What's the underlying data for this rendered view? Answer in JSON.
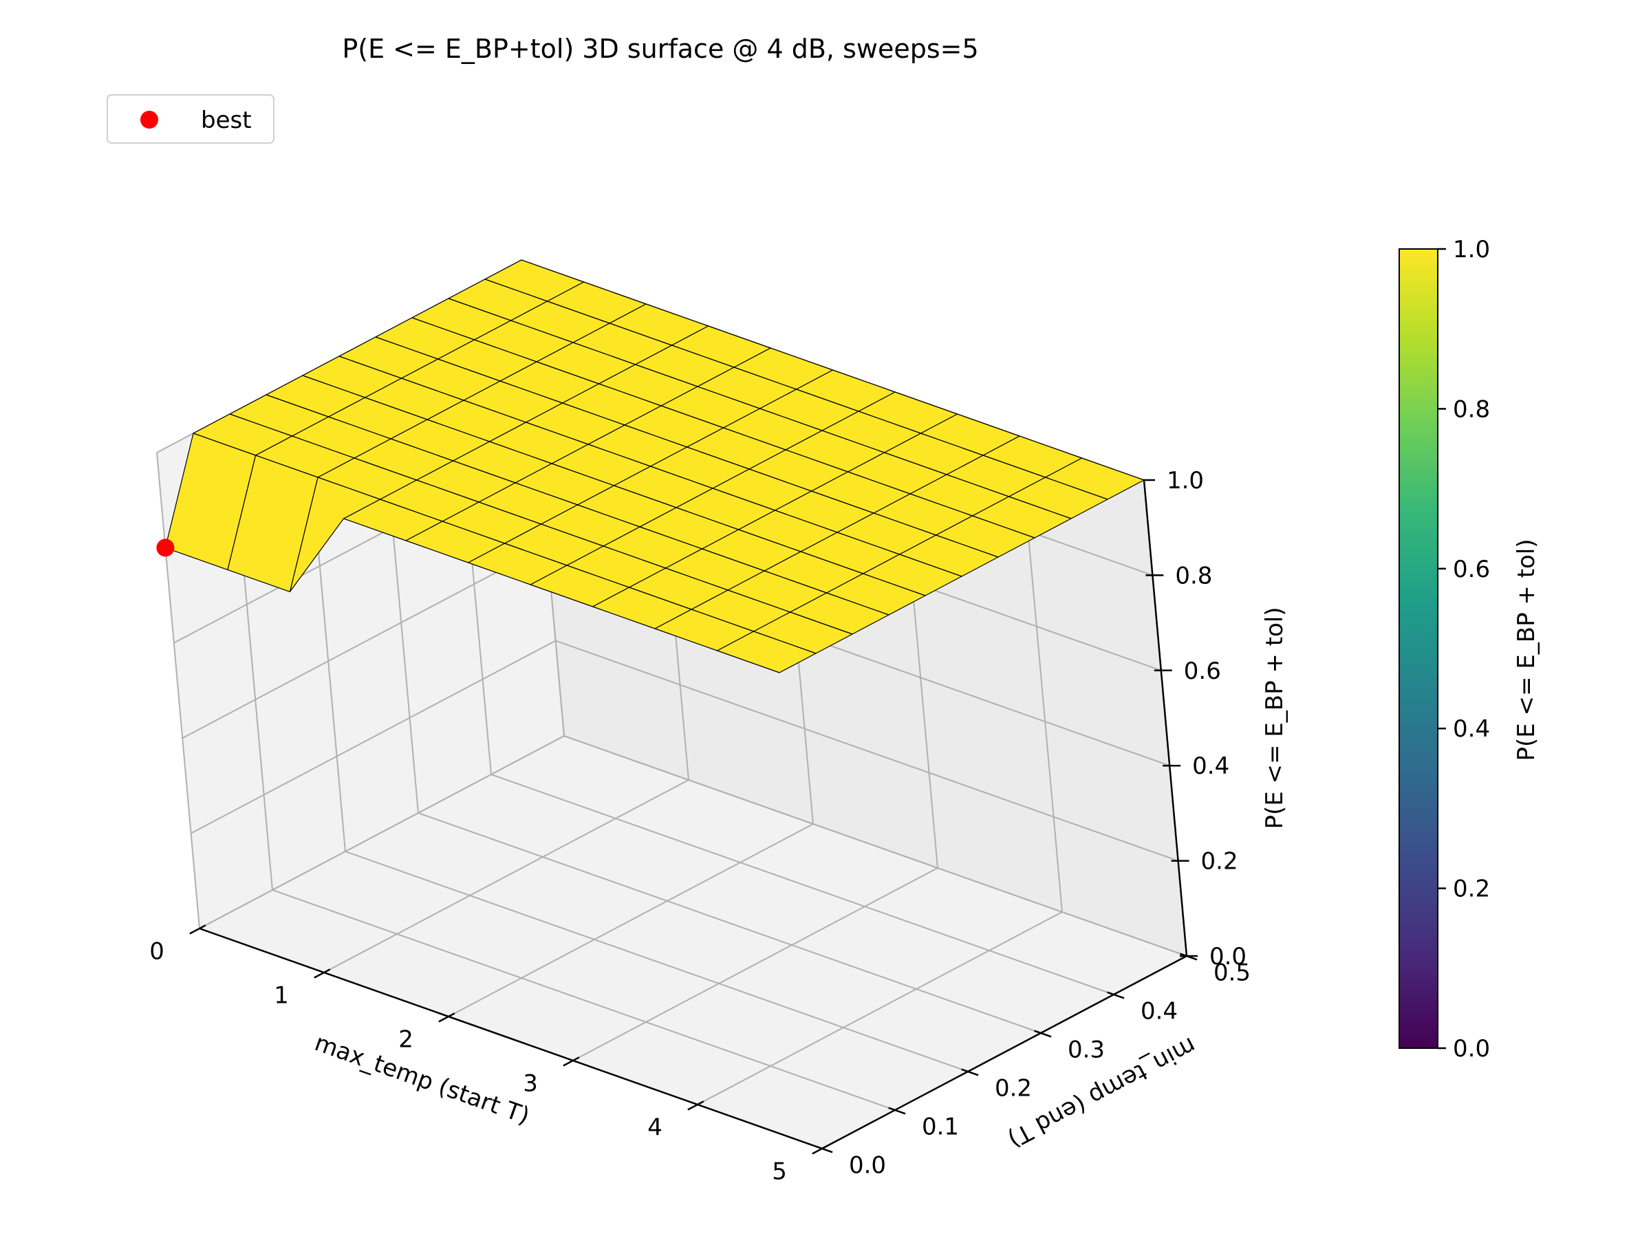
{
  "chart_data": {
    "type": "surface3d",
    "title": "P(E <= E_BP+tol) 3D surface @ 4 dB, sweeps=5",
    "xlabel": "max_temp (start T)",
    "ylabel": "min_temp (end T)",
    "zlabel": "P(E <= E_BP + tol)",
    "colorbar_label": "P(E <= E_BP + tol)",
    "colormap": "viridis",
    "x_ticks": [
      "0",
      "1",
      "2",
      "3",
      "4",
      "5"
    ],
    "y_ticks": [
      "0.0",
      "0.1",
      "0.2",
      "0.3",
      "0.4",
      "0.5"
    ],
    "z_ticks": [
      "0.0",
      "0.2",
      "0.4",
      "0.6",
      "0.8",
      "1.0"
    ],
    "colorbar_ticks": [
      "0.0",
      "0.2",
      "0.4",
      "0.6",
      "0.8",
      "1.0"
    ],
    "zlim": [
      0,
      1
    ],
    "x_grid": [
      0.0,
      0.5,
      1.0,
      1.5,
      2.0,
      2.5,
      3.0,
      3.5,
      4.0,
      4.5,
      5.0
    ],
    "y_grid": [
      0.0,
      0.05,
      0.1,
      0.15,
      0.2,
      0.25,
      0.3,
      0.35,
      0.4,
      0.45,
      0.5
    ],
    "z_values": [
      [
        0.8,
        0.8,
        0.8,
        1,
        1,
        1,
        1,
        1,
        1,
        1,
        1
      ],
      [
        1,
        1,
        1,
        1,
        1,
        1,
        1,
        1,
        1,
        1,
        1
      ],
      [
        1,
        1,
        1,
        1,
        1,
        1,
        1,
        1,
        1,
        1,
        1
      ],
      [
        1,
        1,
        1,
        1,
        1,
        1,
        1,
        1,
        1,
        1,
        1
      ],
      [
        1,
        1,
        1,
        1,
        1,
        1,
        1,
        1,
        1,
        1,
        1
      ],
      [
        1,
        1,
        1,
        1,
        1,
        1,
        1,
        1,
        1,
        1,
        1
      ],
      [
        1,
        1,
        1,
        1,
        1,
        1,
        1,
        1,
        1,
        1,
        1
      ],
      [
        1,
        1,
        1,
        1,
        1,
        1,
        1,
        1,
        1,
        1,
        1
      ],
      [
        1,
        1,
        1,
        1,
        1,
        1,
        1,
        1,
        1,
        1,
        1
      ],
      [
        1,
        1,
        1,
        1,
        1,
        1,
        1,
        1,
        1,
        1,
        1
      ],
      [
        1,
        1,
        1,
        1,
        1,
        1,
        1,
        1,
        1,
        1,
        1
      ]
    ],
    "best_point": {
      "x": 0.0,
      "y": 0.0,
      "z": 0.8
    },
    "legend": {
      "label": "best",
      "color": "#ff0000",
      "placement": "top-left"
    },
    "surface_color": "#fde725",
    "grid": true
  }
}
